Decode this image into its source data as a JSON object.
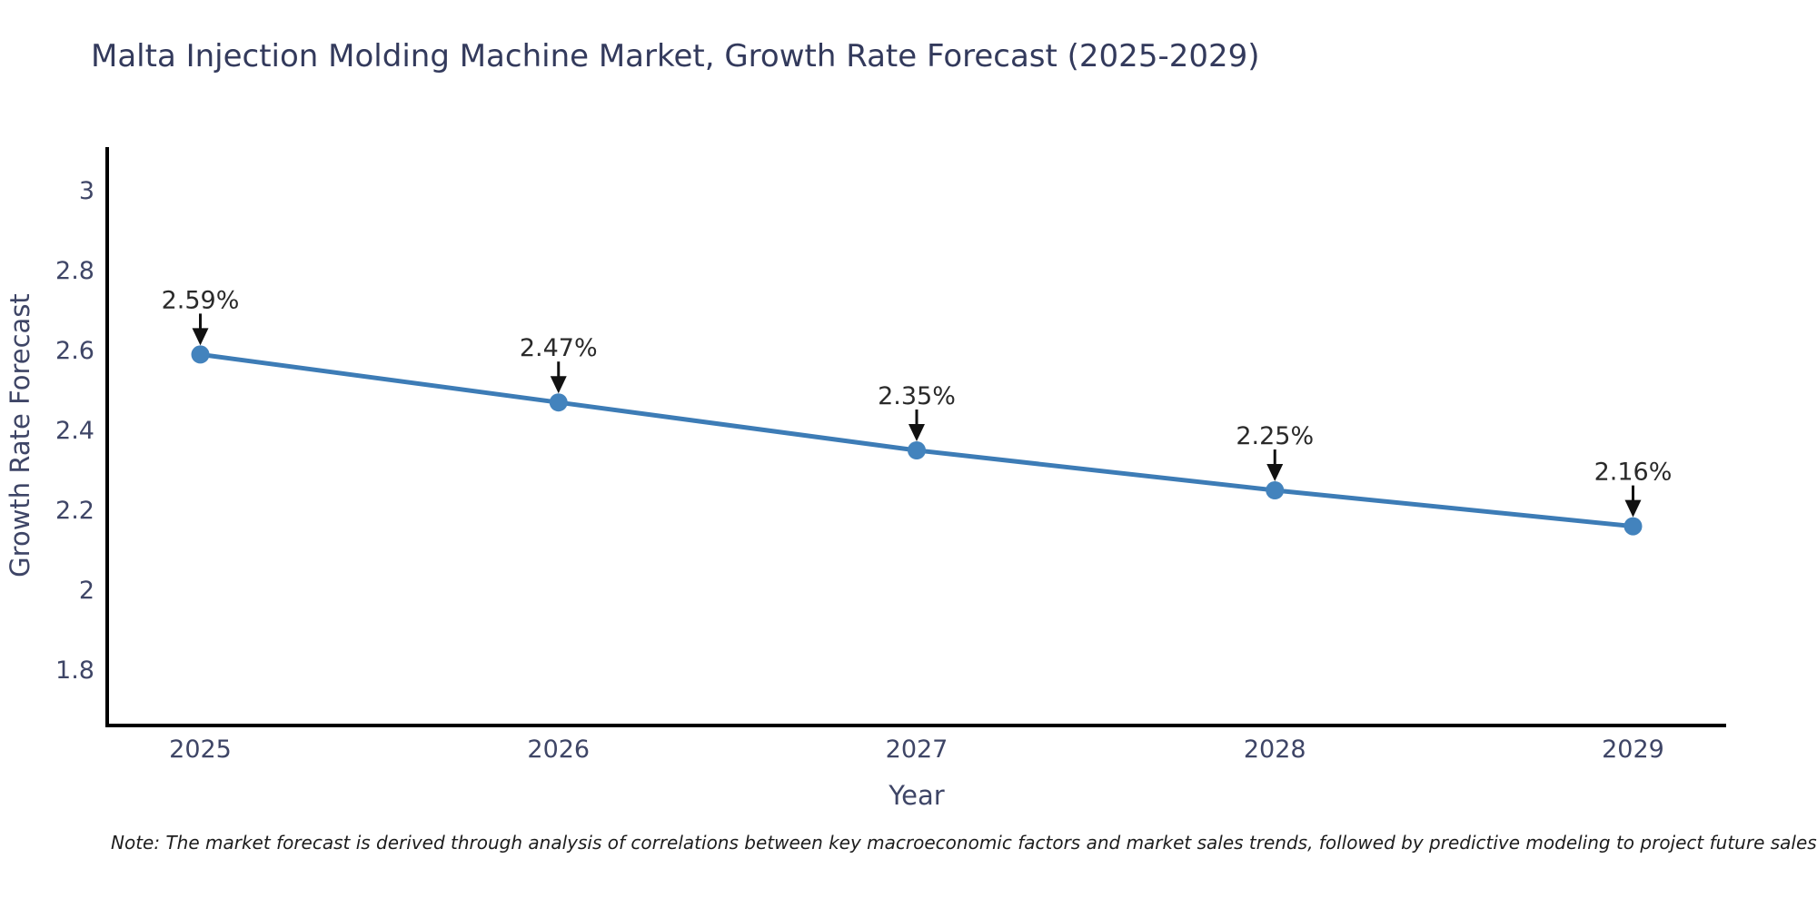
{
  "header": {
    "title": "Malta Injection Molding Machine Market, Growth Rate Forecast (2025-2029)"
  },
  "footnote": {
    "text": "Note: The market forecast is derived through analysis of correlations between key macroeconomic factors and market sales trends, followed by predictive modeling to project future sales."
  },
  "chart_data": {
    "type": "line",
    "title": "Malta Injection Molding Machine Market, Growth Rate Forecast (2025-2029)",
    "xlabel": "Year",
    "ylabel": "Growth Rate Forecast",
    "x": [
      2025,
      2026,
      2027,
      2028,
      2029
    ],
    "x_tick_labels": [
      "2025",
      "2026",
      "2027",
      "2028",
      "2029"
    ],
    "series": [
      {
        "name": "Growth Rate Forecast",
        "values": [
          2.59,
          2.47,
          2.35,
          2.25,
          2.16
        ]
      }
    ],
    "point_labels": [
      "2.59%",
      "2.47%",
      "2.35%",
      "2.25%",
      "2.16%"
    ],
    "y_ticks": [
      1.8,
      2.0,
      2.2,
      2.4,
      2.6,
      2.8,
      3.0
    ],
    "y_tick_labels": [
      "1.8",
      "2",
      "2.2",
      "2.4",
      "2.6",
      "2.8",
      "3"
    ],
    "xlim": [
      2024.74,
      2029.26
    ],
    "ylim": [
      1.666,
      3.109
    ],
    "grid": false,
    "legend": "none",
    "annotations": "value labels with downward arrows above each data point",
    "colors": {
      "line": "#3d7cb6",
      "marker": "#4383bd",
      "arrow": "#111111",
      "spine": "#000000",
      "title": "#333a5c",
      "tick": "#3e4566",
      "axis_title": "#3e4566",
      "annotation": "#2a2a2a",
      "note": "#1d1d1d",
      "background": "#ffffff"
    }
  }
}
